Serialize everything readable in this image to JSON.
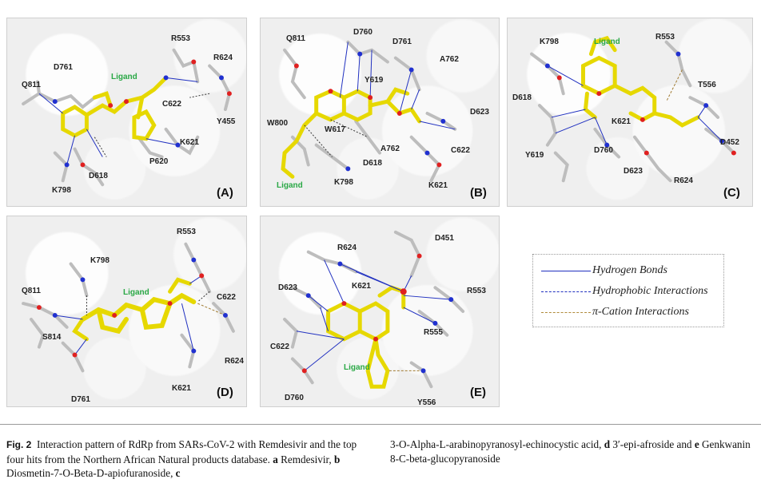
{
  "panels": {
    "A": {
      "label": "(A)",
      "ligand": "Ligand",
      "residues": [
        "R553",
        "R624",
        "D761",
        "Q811",
        "C622",
        "Y455",
        "K621",
        "P620",
        "D618",
        "K798"
      ]
    },
    "B": {
      "label": "(B)",
      "ligand": "Ligand",
      "residues": [
        "D760",
        "Q811",
        "D761",
        "A762",
        "Y619",
        "W800",
        "W617",
        "D623",
        "A762",
        "C622",
        "D618",
        "K798",
        "K621"
      ]
    },
    "C": {
      "label": "(C)",
      "ligand": "Ligand",
      "residues": [
        "K798",
        "R553",
        "T556",
        "D618",
        "K621",
        "Y619",
        "D760",
        "D452",
        "D623",
        "R624"
      ]
    },
    "D": {
      "label": "(D)",
      "ligand": "Ligand",
      "residues": [
        "R553",
        "K798",
        "Q811",
        "C622",
        "S814",
        "R624",
        "K621",
        "D761"
      ]
    },
    "E": {
      "label": "(E)",
      "ligand": "Ligand",
      "residues": [
        "D451",
        "R624",
        "K621",
        "D623",
        "R553",
        "R555",
        "C622",
        "D760",
        "Y556"
      ]
    }
  },
  "legend": {
    "items": [
      {
        "label": "Hydrogen Bonds",
        "color": "#1f2fbf"
      },
      {
        "label": "Hydrophobic Interactions",
        "color": "#1f2fbf"
      },
      {
        "label": "π-Cation Interactions",
        "color": "#b08a3a"
      }
    ]
  },
  "caption": {
    "fig_label": "Fig. 2",
    "text_col1_a": "Interaction pattern of RdRp from SARs-CoV-2 with Remdesivir and the top four hits from the Northern African Natural products database.",
    "a_label": "a",
    "a_text": "Remdesivir,",
    "b_label": "b",
    "b_text": "Diosmetin-7-O-Beta-D-apiofuranoside,",
    "c_label": "c",
    "c_text": "3-O-Alpha-L-arabinopyranosyl-echinocystic acid,",
    "d_label": "d",
    "d_text": "3′-epi-afroside",
    "and1": "and",
    "e_label": "e",
    "e_text": "Genkwanin 8-C-beta-glucopyranoside"
  }
}
